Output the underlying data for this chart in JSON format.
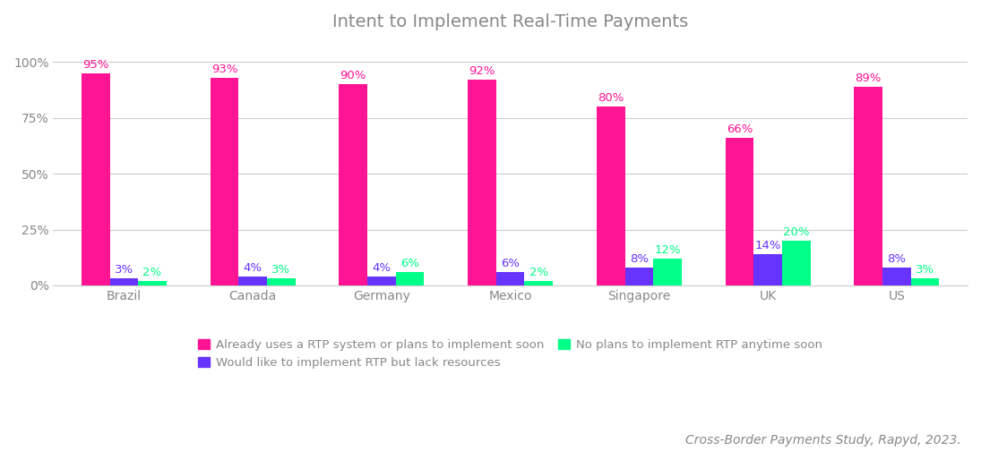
{
  "title": "Intent to Implement Real-Time Payments",
  "categories": [
    "Brazil",
    "Canada",
    "Germany",
    "Mexico",
    "Singapore",
    "UK",
    "US"
  ],
  "series": {
    "already": {
      "label": "Already uses a RTP system or plans to implement soon",
      "color": "#FF1493",
      "values": [
        95,
        93,
        90,
        92,
        80,
        66,
        89
      ],
      "labels": [
        "95%",
        "93%",
        "90%",
        "92%",
        "80%",
        "66%",
        "89%"
      ]
    },
    "would_like": {
      "label": "Would like to implement RTP but lack resources",
      "color": "#6633FF",
      "values": [
        3,
        4,
        4,
        6,
        8,
        14,
        8
      ],
      "labels": [
        "3%",
        "4%",
        "4%",
        "6%",
        "8%",
        "14%",
        "8%"
      ]
    },
    "no_plans": {
      "label": "No plans to implement RTP anytime soon",
      "color": "#00FF88",
      "values": [
        2,
        3,
        6,
        2,
        12,
        20,
        3
      ],
      "labels": [
        "2%",
        "3%",
        "6%",
        "2%",
        "12%",
        "20%",
        "3%"
      ]
    }
  },
  "ylim": [
    0,
    108
  ],
  "yticks": [
    0,
    25,
    50,
    75,
    100
  ],
  "ytick_labels": [
    "0%",
    "25%",
    "50%",
    "75%",
    "100%"
  ],
  "bar_width": 0.22,
  "group_width": 0.75,
  "background_color": "#FFFFFF",
  "grid_color": "#CCCCCC",
  "title_color": "#888888",
  "tick_label_color": "#888888",
  "source_text": "Cross-Border Payments Study, Rapyd, 2023.",
  "source_color": "#888888",
  "source_fontsize": 10
}
